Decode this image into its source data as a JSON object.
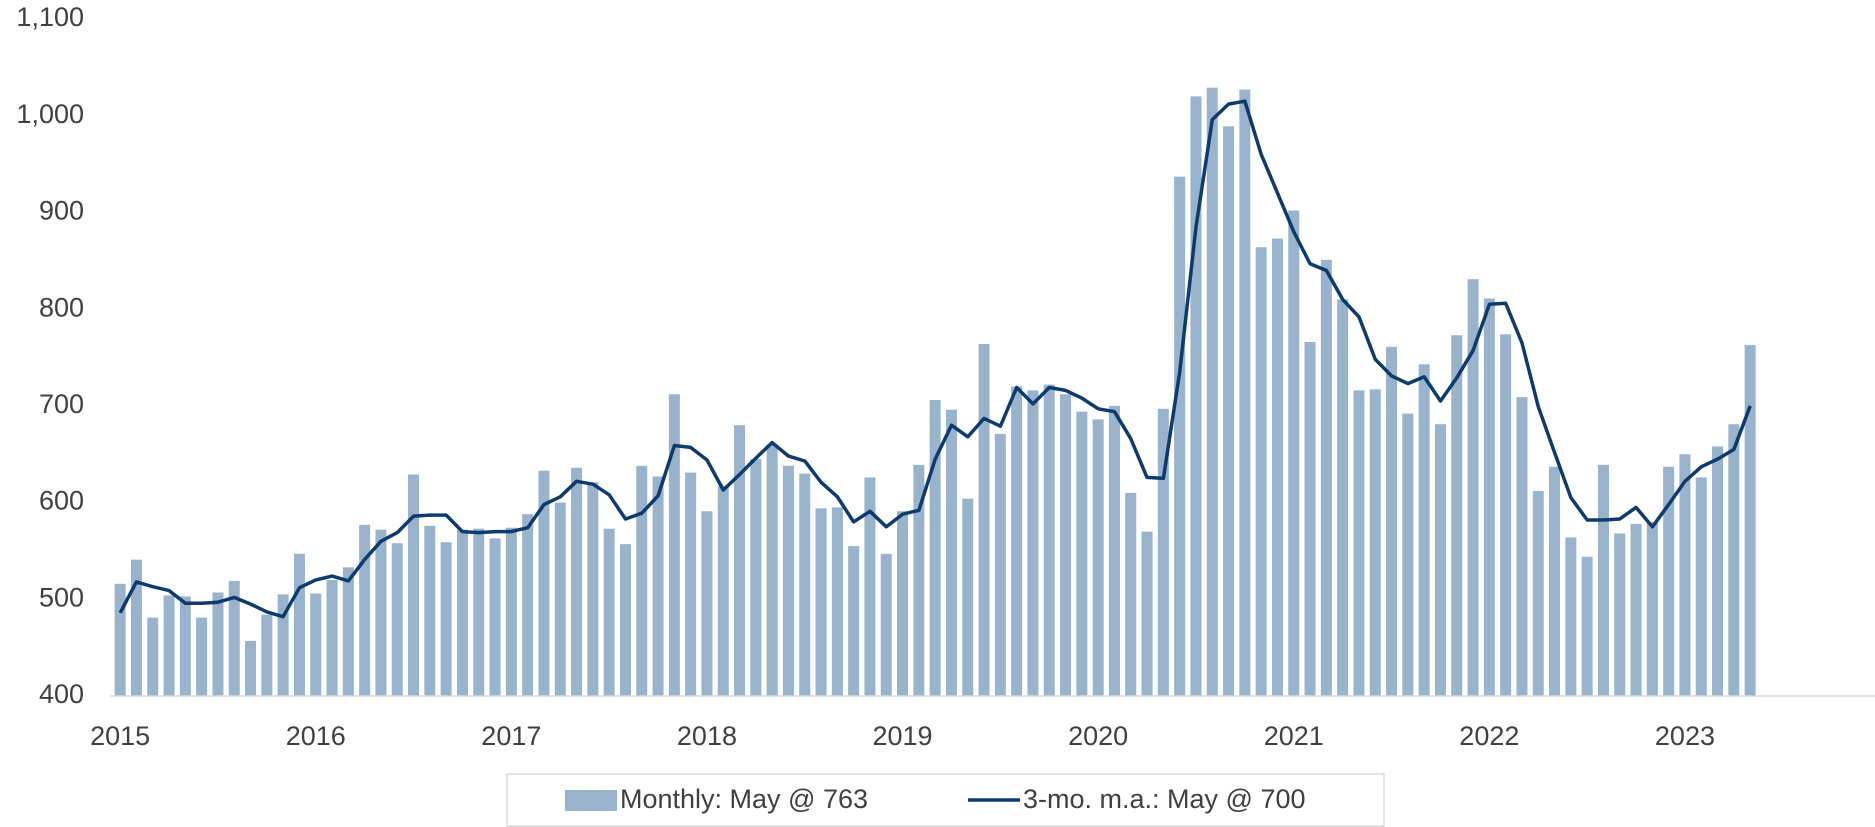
{
  "chart_data": {
    "type": "bar_line",
    "categories": [
      "2015",
      null,
      null,
      null,
      null,
      null,
      null,
      null,
      null,
      null,
      null,
      null,
      "2016",
      null,
      null,
      null,
      null,
      null,
      null,
      null,
      null,
      null,
      null,
      null,
      "2017",
      null,
      null,
      null,
      null,
      null,
      null,
      null,
      null,
      null,
      null,
      null,
      "2018",
      null,
      null,
      null,
      null,
      null,
      null,
      null,
      null,
      null,
      null,
      null,
      "2019",
      null,
      null,
      null,
      null,
      null,
      null,
      null,
      null,
      null,
      null,
      null,
      "2020",
      null,
      null,
      null,
      null,
      null,
      null,
      null,
      null,
      null,
      null,
      null,
      "2021",
      null,
      null,
      null,
      null,
      null,
      null,
      null,
      null,
      null,
      null,
      null,
      "2022",
      null,
      null,
      null,
      null,
      null,
      null,
      null,
      null,
      null,
      null,
      null,
      "2023",
      null,
      null,
      null,
      null
    ],
    "series": [
      {
        "name": "Monthly: May @ 763",
        "type": "bar",
        "color": "#98b3cb",
        "values": [
          516,
          541,
          481,
          504,
          503,
          481,
          507,
          519,
          457,
          484,
          505,
          547,
          506,
          520,
          533,
          577,
          572,
          558,
          629,
          576,
          559,
          572,
          573,
          563,
          574,
          588,
          633,
          600,
          636,
          621,
          573,
          557,
          638,
          627,
          712,
          631,
          591,
          617,
          680,
          645,
          660,
          638,
          630,
          594,
          595,
          555,
          626,
          547,
          591,
          639,
          706,
          696,
          604,
          764,
          671,
          720,
          716,
          722,
          712,
          694,
          686,
          700,
          610,
          570,
          697,
          937,
          1020,
          1029,
          989,
          1027,
          864,
          873,
          902,
          766,
          851,
          810,
          716,
          717,
          761,
          692,
          743,
          681,
          773,
          831,
          811,
          774,
          709,
          612,
          637,
          564,
          544,
          639,
          568,
          578,
          580,
          637,
          650,
          626,
          658,
          681,
          763
        ]
      },
      {
        "name": "3-mo. m.a.: May @ 700",
        "type": "line",
        "color": "#0d3b6e",
        "values": [
          486,
          518,
          513,
          509,
          496,
          496,
          497,
          502,
          495,
          487,
          482,
          512,
          520,
          524,
          519,
          541,
          560,
          569,
          586,
          587,
          587,
          570,
          569,
          570,
          570,
          574,
          598,
          606,
          622,
          619,
          608,
          583,
          589,
          607,
          659,
          657,
          644,
          613,
          629,
          646,
          662,
          648,
          643,
          621,
          606,
          580,
          591,
          575,
          588,
          592,
          645,
          680,
          668,
          687,
          679,
          719,
          702,
          719,
          716,
          708,
          697,
          694,
          666,
          626,
          625,
          735,
          885,
          996,
          1012,
          1015,
          960,
          920,
          880,
          847,
          840,
          810,
          792,
          748,
          731,
          723,
          730,
          705,
          729,
          757,
          805,
          806,
          765,
          699,
          652,
          605,
          582,
          582,
          583,
          595,
          575,
          598,
          622,
          637,
          645,
          655,
          700
        ]
      }
    ],
    "ylim": [
      400,
      1100
    ],
    "yticks": [
      400,
      500,
      600,
      700,
      800,
      900,
      {
        "value": 1000,
        "label": "1,000"
      },
      {
        "value": 1100,
        "label": "1,100"
      }
    ],
    "grid": false,
    "legend": "bottom"
  }
}
